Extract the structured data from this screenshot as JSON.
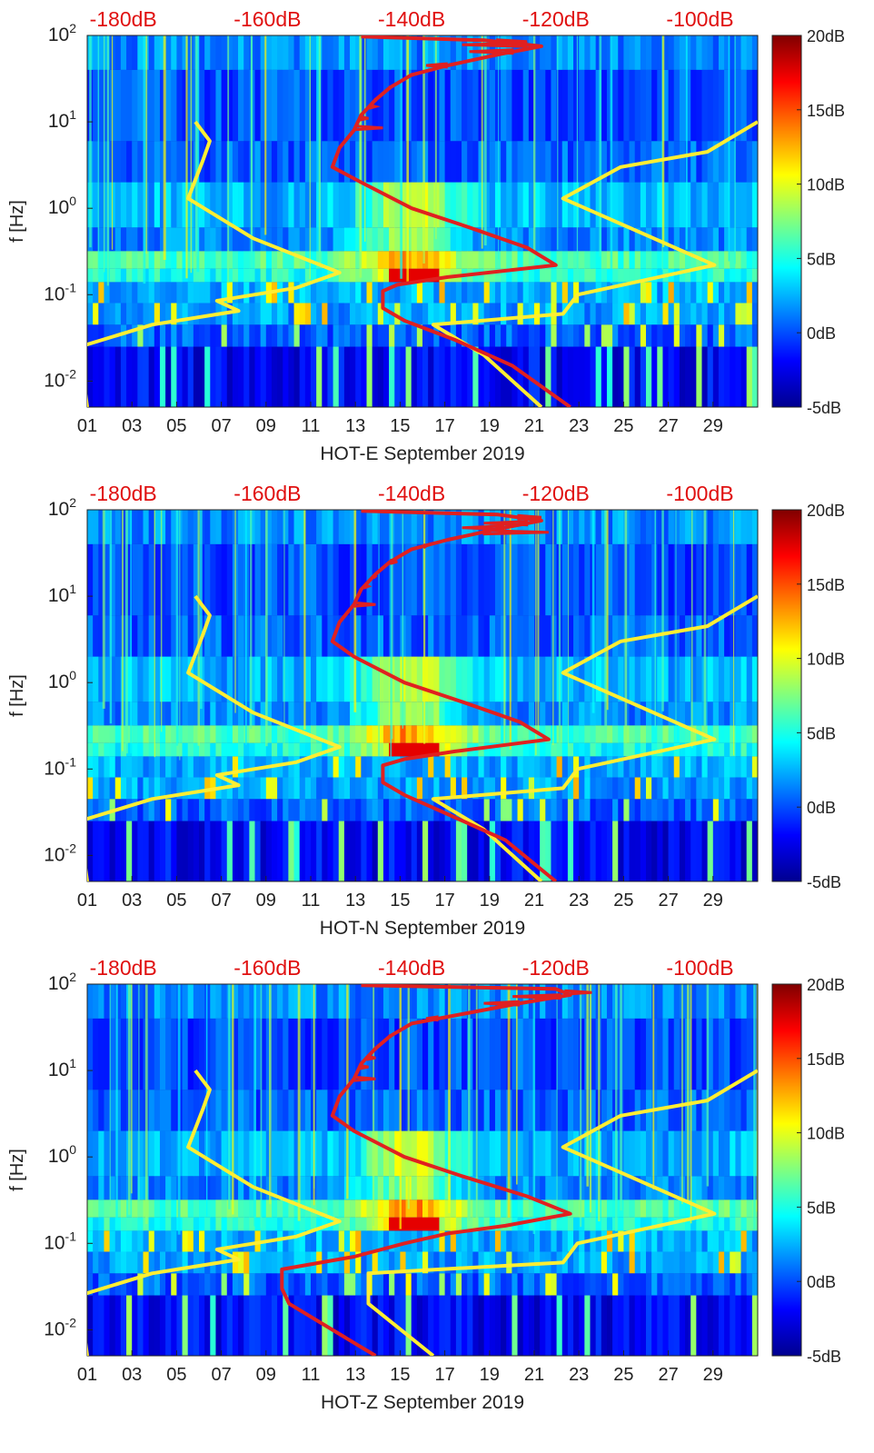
{
  "chart_data": [
    {
      "type": "heatmap",
      "title": "HOT-E September 2019",
      "xlabel": "HOT-E September 2019",
      "ylabel": "f [Hz]",
      "x_tick_labels": [
        "01",
        "03",
        "05",
        "07",
        "09",
        "11",
        "13",
        "15",
        "17",
        "19",
        "21",
        "23",
        "25",
        "27",
        "29"
      ],
      "x_range_days": [
        1,
        31
      ],
      "y_scale": "log",
      "y_range_hz": [
        0.005,
        100
      ],
      "y_tick_labels": [
        {
          "base": "10",
          "exp": "-2"
        },
        {
          "base": "10",
          "exp": "-1"
        },
        {
          "base": "10",
          "exp": "0"
        },
        {
          "base": "10",
          "exp": "1"
        },
        {
          "base": "10",
          "exp": "2"
        }
      ],
      "top_axis_labels": [
        "-180dB",
        "-160dB",
        "-140dB",
        "-120dB",
        "-100dB"
      ],
      "top_axis_range_db": [
        -185,
        -92
      ],
      "colorbar": {
        "labels": [
          "20dB",
          "15dB",
          "10dB",
          "5dB",
          "0dB",
          "-5dB"
        ],
        "range_db": [
          -5,
          20
        ],
        "colormap": "jet"
      },
      "noise_model_curves": [
        {
          "name": "low",
          "color": "#ffee33",
          "points": [
            [
              -185,
              0.005
            ],
            [
              -186,
              0.02
            ],
            [
              -186,
              0.025
            ],
            [
              -176,
              0.045
            ],
            [
              -164,
              0.065
            ],
            [
              -167,
              0.085
            ],
            [
              -156,
              0.12
            ],
            [
              -150,
              0.18
            ],
            [
              -162,
              0.45
            ],
            [
              -171,
              1.3
            ],
            [
              -169,
              3.5
            ],
            [
              -168,
              6.0
            ],
            [
              -170,
              10
            ]
          ]
        },
        {
          "name": "high",
          "color": "#ffee33",
          "points": [
            [
              -122,
              0.005
            ],
            [
              -130,
              0.02
            ],
            [
              -137,
              0.045
            ],
            [
              -119,
              0.06
            ],
            [
              -117,
              0.1
            ],
            [
              -98,
              0.22
            ],
            [
              -119,
              1.3
            ],
            [
              -111,
              3.0
            ],
            [
              -99,
              4.5
            ],
            [
              -92,
              10
            ]
          ]
        }
      ],
      "median_curve": {
        "color": "#e02020",
        "points": [
          [
            -118,
            0.005
          ],
          [
            -126,
            0.015
          ],
          [
            -134,
            0.03
          ],
          [
            -141,
            0.05
          ],
          [
            -144,
            0.07
          ],
          [
            -144,
            0.11
          ],
          [
            -142,
            0.13
          ],
          [
            -135,
            0.16
          ],
          [
            -120,
            0.22
          ],
          [
            -124,
            0.35
          ],
          [
            -132,
            0.6
          ],
          [
            -140,
            1.0
          ],
          [
            -147,
            2.0
          ],
          [
            -151,
            3.0
          ],
          [
            -150,
            5.0
          ],
          [
            -148,
            8.0
          ],
          [
            -147,
            12
          ],
          [
            -145,
            18
          ],
          [
            -143,
            25
          ],
          [
            -140,
            35
          ],
          [
            -135,
            45
          ],
          [
            -128,
            60
          ],
          [
            -122,
            75
          ],
          [
            -130,
            88
          ],
          [
            -147,
            97
          ]
        ],
        "spikes": [
          [
            -143,
            25
          ],
          [
            -145,
            18
          ],
          [
            -145,
            15
          ],
          [
            -146,
            11
          ],
          [
            -144,
            8.5
          ],
          [
            -124,
            85
          ],
          [
            -133,
            78
          ],
          [
            -140,
            35
          ],
          [
            -138,
            45
          ],
          [
            -132,
            65
          ]
        ]
      }
    },
    {
      "type": "heatmap",
      "title": "HOT-N September 2019",
      "xlabel": "HOT-N September 2019",
      "ylabel": "f [Hz]",
      "x_tick_labels": [
        "01",
        "03",
        "05",
        "07",
        "09",
        "11",
        "13",
        "15",
        "17",
        "19",
        "21",
        "23",
        "25",
        "27",
        "29"
      ],
      "x_range_days": [
        1,
        31
      ],
      "y_scale": "log",
      "y_range_hz": [
        0.005,
        100
      ],
      "y_tick_labels": [
        {
          "base": "10",
          "exp": "-2"
        },
        {
          "base": "10",
          "exp": "-1"
        },
        {
          "base": "10",
          "exp": "0"
        },
        {
          "base": "10",
          "exp": "1"
        },
        {
          "base": "10",
          "exp": "2"
        }
      ],
      "top_axis_labels": [
        "-180dB",
        "-160dB",
        "-140dB",
        "-120dB",
        "-100dB"
      ],
      "top_axis_range_db": [
        -185,
        -92
      ],
      "colorbar": {
        "labels": [
          "20dB",
          "15dB",
          "10dB",
          "5dB",
          "0dB",
          "-5dB"
        ],
        "range_db": [
          -5,
          20
        ],
        "colormap": "jet"
      },
      "noise_model_curves": [
        {
          "name": "low",
          "color": "#ffee33",
          "points": [
            [
              -185,
              0.005
            ],
            [
              -186,
              0.02
            ],
            [
              -186,
              0.025
            ],
            [
              -176,
              0.045
            ],
            [
              -164,
              0.065
            ],
            [
              -167,
              0.085
            ],
            [
              -156,
              0.12
            ],
            [
              -150,
              0.18
            ],
            [
              -162,
              0.45
            ],
            [
              -171,
              1.3
            ],
            [
              -169,
              3.5
            ],
            [
              -168,
              6.0
            ],
            [
              -170,
              10
            ]
          ]
        },
        {
          "name": "high",
          "color": "#ffee33",
          "points": [
            [
              -122,
              0.005
            ],
            [
              -130,
              0.02
            ],
            [
              -137,
              0.045
            ],
            [
              -119,
              0.06
            ],
            [
              -117,
              0.1
            ],
            [
              -98,
              0.22
            ],
            [
              -119,
              1.3
            ],
            [
              -111,
              3.0
            ],
            [
              -99,
              4.5
            ],
            [
              -92,
              10
            ]
          ]
        }
      ],
      "median_curve": {
        "color": "#e02020",
        "points": [
          [
            -120,
            0.005
          ],
          [
            -127,
            0.015
          ],
          [
            -135,
            0.03
          ],
          [
            -141,
            0.05
          ],
          [
            -144,
            0.07
          ],
          [
            -144,
            0.11
          ],
          [
            -141,
            0.13
          ],
          [
            -134,
            0.16
          ],
          [
            -121,
            0.22
          ],
          [
            -125,
            0.35
          ],
          [
            -133,
            0.6
          ],
          [
            -141,
            1.0
          ],
          [
            -148,
            2.0
          ],
          [
            -151,
            3.0
          ],
          [
            -150,
            5.0
          ],
          [
            -148,
            8.0
          ],
          [
            -147,
            12
          ],
          [
            -145,
            18
          ],
          [
            -143,
            25
          ],
          [
            -140,
            35
          ],
          [
            -135,
            45
          ],
          [
            -128,
            60
          ],
          [
            -122,
            75
          ],
          [
            -128,
            88
          ],
          [
            -147,
            97
          ]
        ],
        "spikes": [
          [
            -142,
            25
          ],
          [
            -145,
            17
          ],
          [
            -146,
            13
          ],
          [
            -145,
            8.0
          ],
          [
            -121,
            55
          ],
          [
            -122,
            82
          ],
          [
            -130,
            70
          ],
          [
            -138,
            38
          ],
          [
            -133,
            62
          ]
        ]
      }
    },
    {
      "type": "heatmap",
      "title": "HOT-Z September 2019",
      "xlabel": "HOT-Z September 2019",
      "ylabel": "f [Hz]",
      "x_tick_labels": [
        "01",
        "03",
        "05",
        "07",
        "09",
        "11",
        "13",
        "15",
        "17",
        "19",
        "21",
        "23",
        "25",
        "27",
        "29"
      ],
      "x_range_days": [
        1,
        31
      ],
      "y_scale": "log",
      "y_range_hz": [
        0.005,
        100
      ],
      "y_tick_labels": [
        {
          "base": "10",
          "exp": "-2"
        },
        {
          "base": "10",
          "exp": "-1"
        },
        {
          "base": "10",
          "exp": "0"
        },
        {
          "base": "10",
          "exp": "1"
        },
        {
          "base": "10",
          "exp": "2"
        }
      ],
      "top_axis_labels": [
        "-180dB",
        "-160dB",
        "-140dB",
        "-120dB",
        "-100dB"
      ],
      "top_axis_range_db": [
        -185,
        -92
      ],
      "colorbar": {
        "labels": [
          "20dB",
          "15dB",
          "10dB",
          "5dB",
          "0dB",
          "-5dB"
        ],
        "range_db": [
          -5,
          20
        ],
        "colormap": "jet"
      },
      "noise_model_curves": [
        {
          "name": "low",
          "color": "#ffee33",
          "points": [
            [
              -185,
              0.005
            ],
            [
              -186,
              0.02
            ],
            [
              -186,
              0.025
            ],
            [
              -176,
              0.045
            ],
            [
              -164,
              0.065
            ],
            [
              -167,
              0.085
            ],
            [
              -156,
              0.12
            ],
            [
              -150,
              0.18
            ],
            [
              -162,
              0.45
            ],
            [
              -171,
              1.3
            ],
            [
              -169,
              3.5
            ],
            [
              -168,
              6.0
            ],
            [
              -170,
              10
            ]
          ]
        },
        {
          "name": "high",
          "color": "#ffee33",
          "points": [
            [
              -137,
              0.005
            ],
            [
              -146,
              0.02
            ],
            [
              -146,
              0.045
            ],
            [
              -119,
              0.06
            ],
            [
              -117,
              0.1
            ],
            [
              -98,
              0.22
            ],
            [
              -119,
              1.3
            ],
            [
              -111,
              3.0
            ],
            [
              -99,
              4.5
            ],
            [
              -92,
              10
            ]
          ]
        }
      ],
      "median_curve": {
        "color": "#e02020",
        "points": [
          [
            -145,
            0.005
          ],
          [
            -151,
            0.01
          ],
          [
            -157,
            0.02
          ],
          [
            -158,
            0.03
          ],
          [
            -158,
            0.05
          ],
          [
            -148,
            0.07
          ],
          [
            -141,
            0.1
          ],
          [
            -135,
            0.13
          ],
          [
            -127,
            0.16
          ],
          [
            -118,
            0.22
          ],
          [
            -124,
            0.35
          ],
          [
            -133,
            0.6
          ],
          [
            -141,
            1.0
          ],
          [
            -148,
            2.0
          ],
          [
            -151,
            3.0
          ],
          [
            -150,
            5.0
          ],
          [
            -148,
            8.0
          ],
          [
            -147,
            12
          ],
          [
            -145,
            18
          ],
          [
            -143,
            25
          ],
          [
            -140,
            35
          ],
          [
            -133,
            45
          ],
          [
            -125,
            60
          ],
          [
            -118,
            75
          ],
          [
            -120,
            88
          ],
          [
            -147,
            97
          ]
        ],
        "spikes": [
          [
            -143,
            25
          ],
          [
            -145,
            18
          ],
          [
            -145,
            14
          ],
          [
            -146,
            11
          ],
          [
            -145,
            8.0
          ],
          [
            -115,
            80
          ],
          [
            -126,
            72
          ],
          [
            -138,
            40
          ],
          [
            -130,
            60
          ]
        ]
      }
    }
  ]
}
